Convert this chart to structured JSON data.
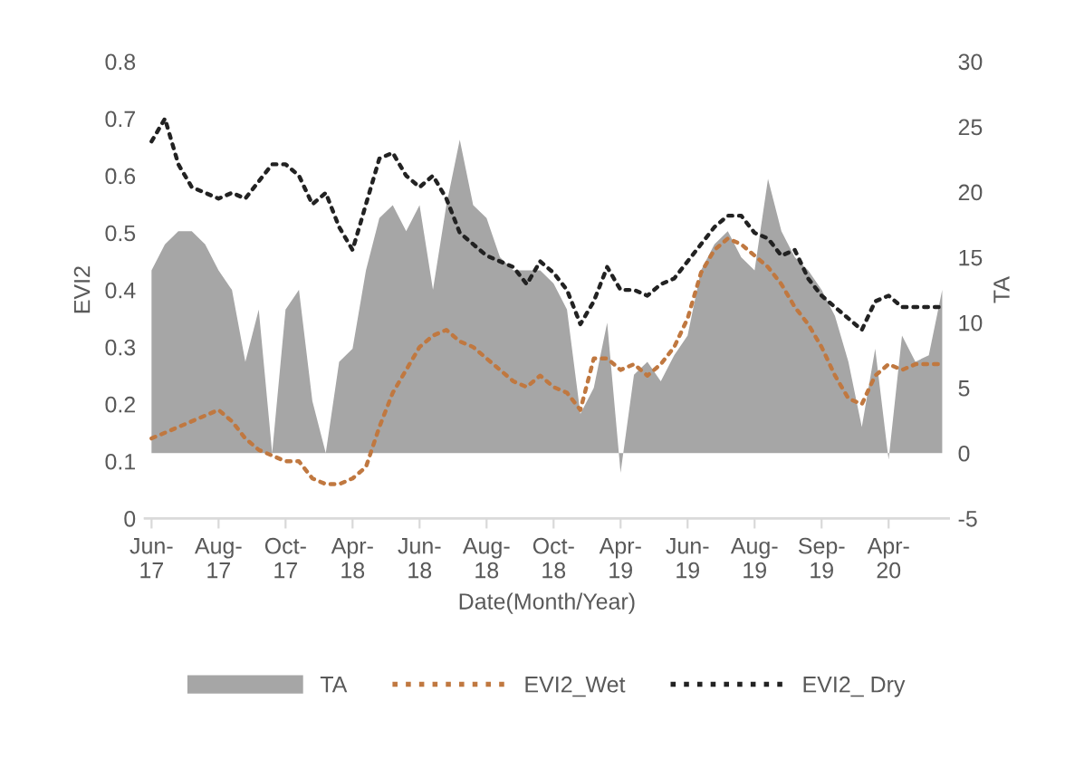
{
  "chart_data": {
    "type": "line",
    "xlabel": "Date(Month/Year)",
    "ylabel": "EVI2",
    "y2label": "TA",
    "categories": [
      "Jun-\n17",
      null,
      null,
      null,
      null,
      "Aug-\n17",
      null,
      null,
      null,
      null,
      "Oct-\n17",
      null,
      null,
      null,
      null,
      "Apr-\n18",
      null,
      null,
      null,
      null,
      "Jun-\n18",
      null,
      null,
      null,
      null,
      "Aug-\n18",
      null,
      null,
      null,
      null,
      "Oct-\n18",
      null,
      null,
      null,
      null,
      "Apr-\n19",
      null,
      null,
      null,
      null,
      "Jun-\n19",
      null,
      null,
      null,
      null,
      "Aug-\n19",
      null,
      null,
      null,
      null,
      "Sep-\n19",
      null,
      null,
      null,
      null,
      "Apr-\n20",
      null,
      null,
      null,
      null
    ],
    "series": [
      {
        "name": "TA",
        "type": "area",
        "axis": "y2",
        "color": "#a6a6a6",
        "values": [
          14,
          16,
          17,
          17,
          16,
          14,
          12.5,
          7,
          11,
          0,
          11,
          12.5,
          4,
          0,
          7,
          8,
          14,
          18,
          19,
          17,
          19,
          12.5,
          19,
          24,
          19,
          18,
          15,
          14,
          14,
          14,
          13,
          11,
          3,
          5,
          10,
          -1.5,
          6,
          7,
          5.5,
          7.5,
          9,
          14,
          16,
          17,
          15,
          14,
          21,
          17,
          15,
          14,
          12.5,
          10.5,
          7,
          2,
          8,
          -0.5,
          9,
          7,
          7.5,
          12.5
        ]
      },
      {
        "name": "EVI2_Wet",
        "color": "#c07840",
        "values": [
          0.14,
          0.15,
          0.16,
          0.17,
          0.18,
          0.19,
          0.17,
          0.14,
          0.12,
          0.11,
          0.1,
          0.1,
          0.07,
          0.06,
          0.06,
          0.07,
          0.09,
          0.16,
          0.22,
          0.26,
          0.3,
          0.32,
          0.33,
          0.31,
          0.3,
          0.28,
          0.26,
          0.24,
          0.23,
          0.25,
          0.23,
          0.22,
          0.19,
          0.28,
          0.28,
          0.26,
          0.27,
          0.25,
          0.27,
          0.3,
          0.35,
          0.43,
          0.47,
          0.49,
          0.48,
          0.46,
          0.44,
          0.41,
          0.37,
          0.34,
          0.3,
          0.25,
          0.21,
          0.2,
          0.25,
          0.27,
          0.26,
          0.27,
          0.27,
          0.27
        ]
      },
      {
        "name": "EVI2_ Dry",
        "color": "#222222",
        "values": [
          0.66,
          0.7,
          0.62,
          0.58,
          0.57,
          0.56,
          0.57,
          0.56,
          0.59,
          0.62,
          0.62,
          0.6,
          0.55,
          0.57,
          0.51,
          0.47,
          0.55,
          0.63,
          0.64,
          0.6,
          0.58,
          0.6,
          0.56,
          0.5,
          0.48,
          0.46,
          0.45,
          0.44,
          0.41,
          0.45,
          0.43,
          0.4,
          0.34,
          0.38,
          0.44,
          0.4,
          0.4,
          0.39,
          0.41,
          0.42,
          0.45,
          0.48,
          0.51,
          0.53,
          0.53,
          0.5,
          0.49,
          0.46,
          0.47,
          0.42,
          0.39,
          0.37,
          0.35,
          0.33,
          0.38,
          0.39,
          0.37,
          0.37,
          0.37,
          0.37
        ]
      }
    ],
    "ylim": [
      0,
      0.8
    ],
    "yticks": [
      0,
      0.1,
      0.2,
      0.3,
      0.4,
      0.5,
      0.6,
      0.7,
      0.8
    ],
    "y2lim": [
      -5,
      30
    ],
    "y2ticks": [
      -5,
      0,
      5,
      10,
      15,
      20,
      25,
      30
    ],
    "line_style": "dotted",
    "marker": "none",
    "grid": false,
    "legend": "bottom"
  }
}
